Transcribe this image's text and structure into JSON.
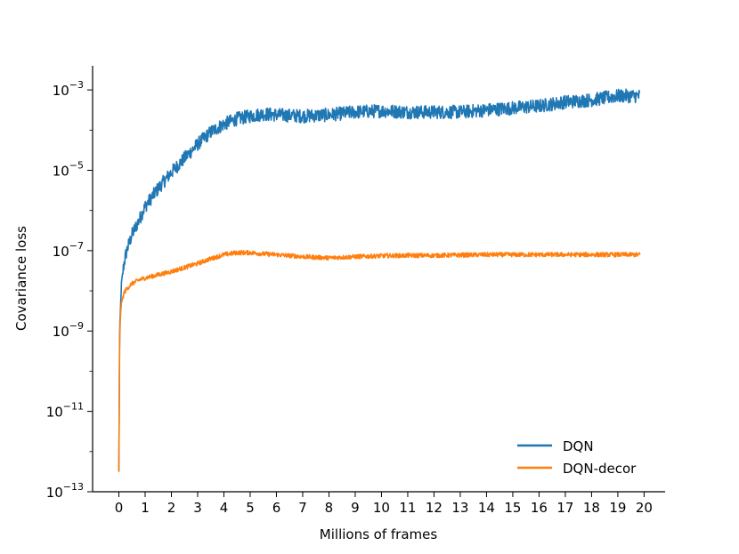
{
  "chart_data": {
    "type": "line",
    "title": "",
    "xlabel": "Millions of frames",
    "ylabel": "Covariance loss",
    "xlim": [
      -1,
      20.8
    ],
    "ylim_log10": [
      -13,
      -2.4
    ],
    "yscale": "log",
    "grid": false,
    "legend_position": "lower-right",
    "x_ticks": [
      0,
      1,
      2,
      3,
      4,
      5,
      6,
      7,
      8,
      9,
      10,
      11,
      12,
      13,
      14,
      15,
      16,
      17,
      18,
      19,
      20
    ],
    "y_ticks": [
      {
        "exp": -13,
        "base": "10",
        "sup": "−13"
      },
      {
        "exp": -11,
        "base": "10",
        "sup": "−11"
      },
      {
        "exp": -9,
        "base": "10",
        "sup": "−9"
      },
      {
        "exp": -7,
        "base": "10",
        "sup": "−7"
      },
      {
        "exp": -5,
        "base": "10",
        "sup": "−5"
      },
      {
        "exp": -3,
        "base": "10",
        "sup": "−3"
      }
    ],
    "x_end": 19.85,
    "series": [
      {
        "name": "DQN",
        "color": "#1f77b4",
        "noise_log10": 0.17,
        "x": [
          0,
          0.03,
          0.1,
          0.2,
          0.3,
          0.5,
          0.8,
          1.0,
          1.5,
          2.0,
          2.5,
          3.0,
          3.5,
          4.0,
          4.5,
          5.0,
          5.5,
          6.0,
          7.0,
          8.0,
          9.0,
          10.0,
          11.0,
          12.0,
          13.0,
          14.0,
          15.0,
          16.0,
          17.0,
          18.0,
          19.0,
          19.85
        ],
        "log10_y": [
          -12.5,
          -9.0,
          -7.8,
          -7.3,
          -7.0,
          -6.6,
          -6.2,
          -5.9,
          -5.45,
          -5.05,
          -4.7,
          -4.35,
          -4.05,
          -3.85,
          -3.72,
          -3.65,
          -3.6,
          -3.62,
          -3.65,
          -3.62,
          -3.55,
          -3.52,
          -3.55,
          -3.55,
          -3.55,
          -3.5,
          -3.45,
          -3.4,
          -3.3,
          -3.25,
          -3.15,
          -3.15
        ]
      },
      {
        "name": "DQN-decor",
        "color": "#ff7f0e",
        "noise_log10": 0.055,
        "x": [
          0,
          0.03,
          0.06,
          0.1,
          0.2,
          0.3,
          0.5,
          0.8,
          1.0,
          1.5,
          2.0,
          2.5,
          3.0,
          3.5,
          4.0,
          4.5,
          5.0,
          5.5,
          6.0,
          7.0,
          8.0,
          9.0,
          10.0,
          11.0,
          12.0,
          13.0,
          14.0,
          15.0,
          16.0,
          17.0,
          18.0,
          19.0,
          19.85
        ],
        "log10_y": [
          -12.5,
          -9.3,
          -8.6,
          -8.3,
          -8.05,
          -7.95,
          -7.82,
          -7.72,
          -7.68,
          -7.6,
          -7.52,
          -7.42,
          -7.32,
          -7.2,
          -7.1,
          -7.05,
          -7.05,
          -7.08,
          -7.1,
          -7.15,
          -7.18,
          -7.15,
          -7.13,
          -7.12,
          -7.12,
          -7.11,
          -7.1,
          -7.1,
          -7.1,
          -7.1,
          -7.1,
          -7.1,
          -7.1
        ]
      }
    ]
  }
}
